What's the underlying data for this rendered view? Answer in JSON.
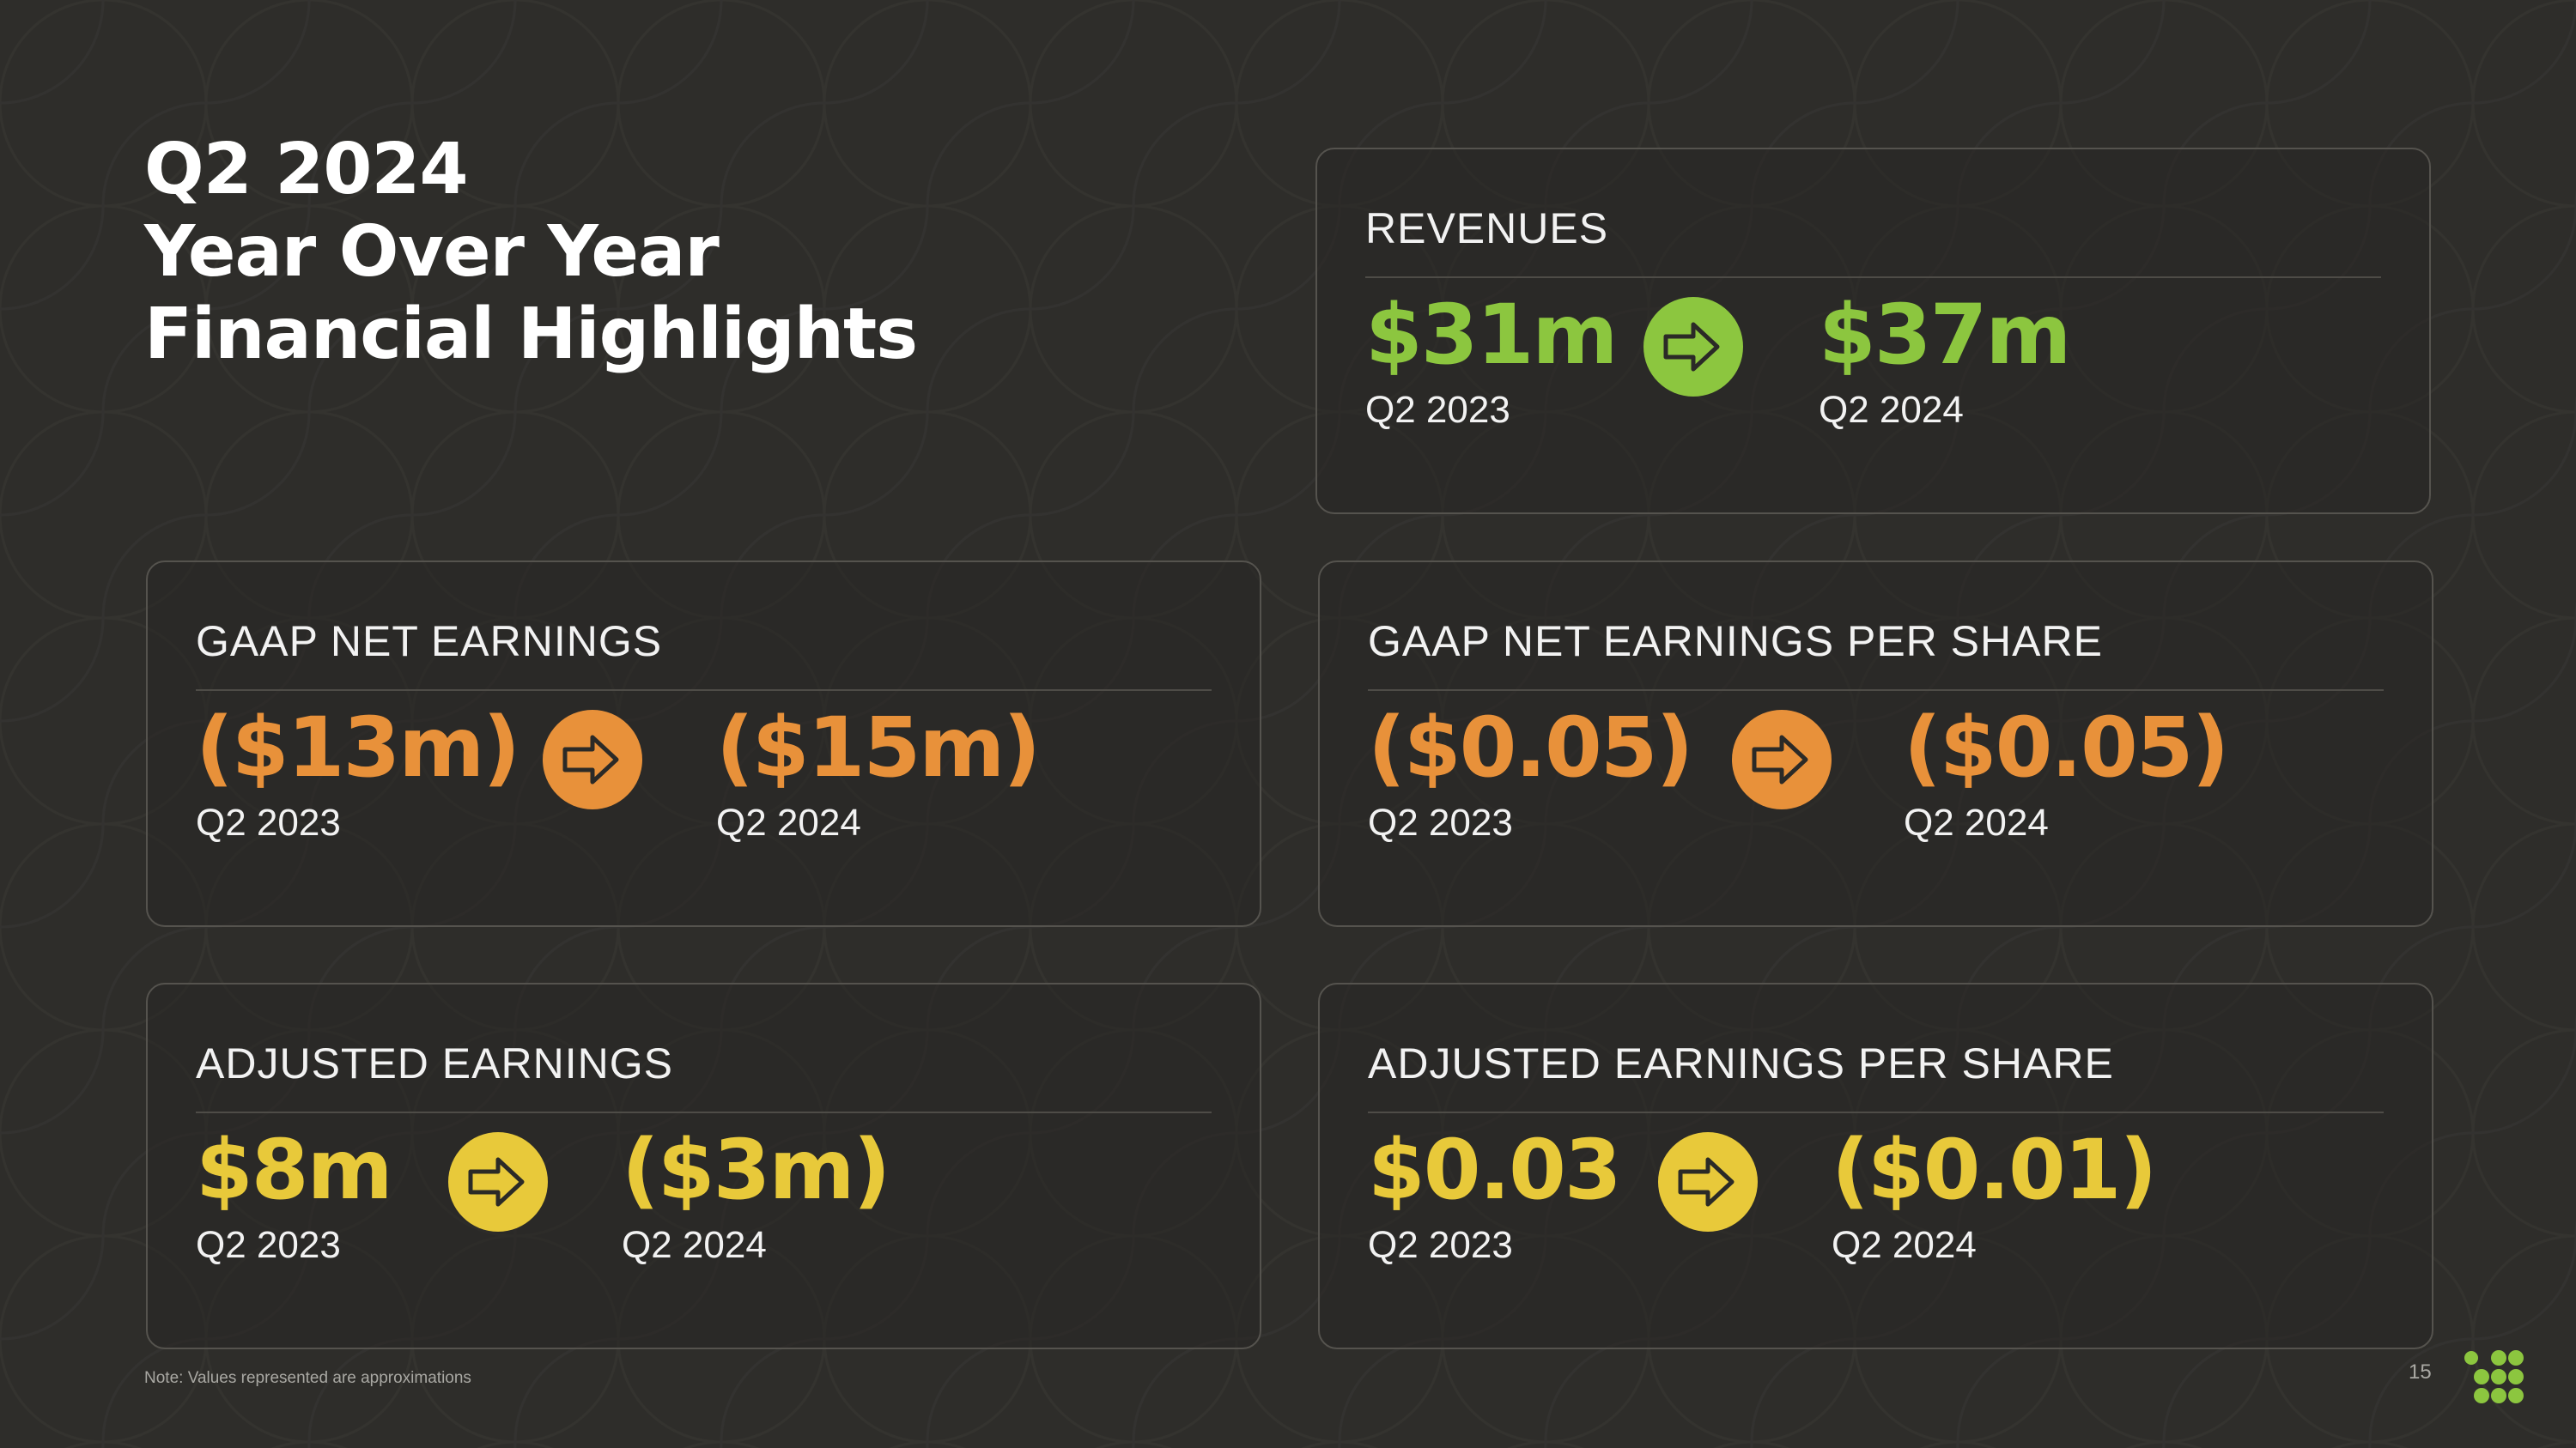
{
  "title": {
    "line1": "Q2 2024",
    "line2": "Year Over Year",
    "line3": "Financial Highlights"
  },
  "colors": {
    "background": "#2e2d2a",
    "green": "#8cc63f",
    "orange": "#e8913a",
    "yellow": "#e8c93a",
    "arrow_outline": "#2b2a27"
  },
  "cards": {
    "revenues": {
      "heading": "REVENUES",
      "prior": {
        "value": "$31m",
        "period": "Q2 2023"
      },
      "current": {
        "value": "$37m",
        "period": "Q2 2024"
      },
      "accent": "green",
      "icon": "arrow-right-icon"
    },
    "gaap_net_earnings": {
      "heading": "GAAP NET EARNINGS",
      "prior": {
        "value": "($13m)",
        "period": "Q2 2023"
      },
      "current": {
        "value": "($15m)",
        "period": "Q2 2024"
      },
      "accent": "orange",
      "icon": "arrow-right-icon"
    },
    "gaap_net_eps": {
      "heading": "GAAP NET EARNINGS PER SHARE",
      "prior": {
        "value": "($0.05)",
        "period": "Q2 2023"
      },
      "current": {
        "value": "($0.05)",
        "period": "Q2 2024"
      },
      "accent": "orange",
      "icon": "arrow-right-icon"
    },
    "adjusted_earnings": {
      "heading": "ADJUSTED EARNINGS",
      "prior": {
        "value": "$8m",
        "period": "Q2 2023"
      },
      "current": {
        "value": "($3m)",
        "period": "Q2 2024"
      },
      "accent": "yellow",
      "icon": "arrow-right-icon"
    },
    "adjusted_eps": {
      "heading": "ADJUSTED EARNINGS PER SHARE",
      "prior": {
        "value": "$0.03",
        "period": "Q2 2023"
      },
      "current": {
        "value": "($0.01)",
        "period": "Q2 2024"
      },
      "accent": "yellow",
      "icon": "arrow-right-icon"
    }
  },
  "footnote": "Note: Values represented are approximations",
  "page_number": "15",
  "logo": "dot-grid-logo-icon"
}
